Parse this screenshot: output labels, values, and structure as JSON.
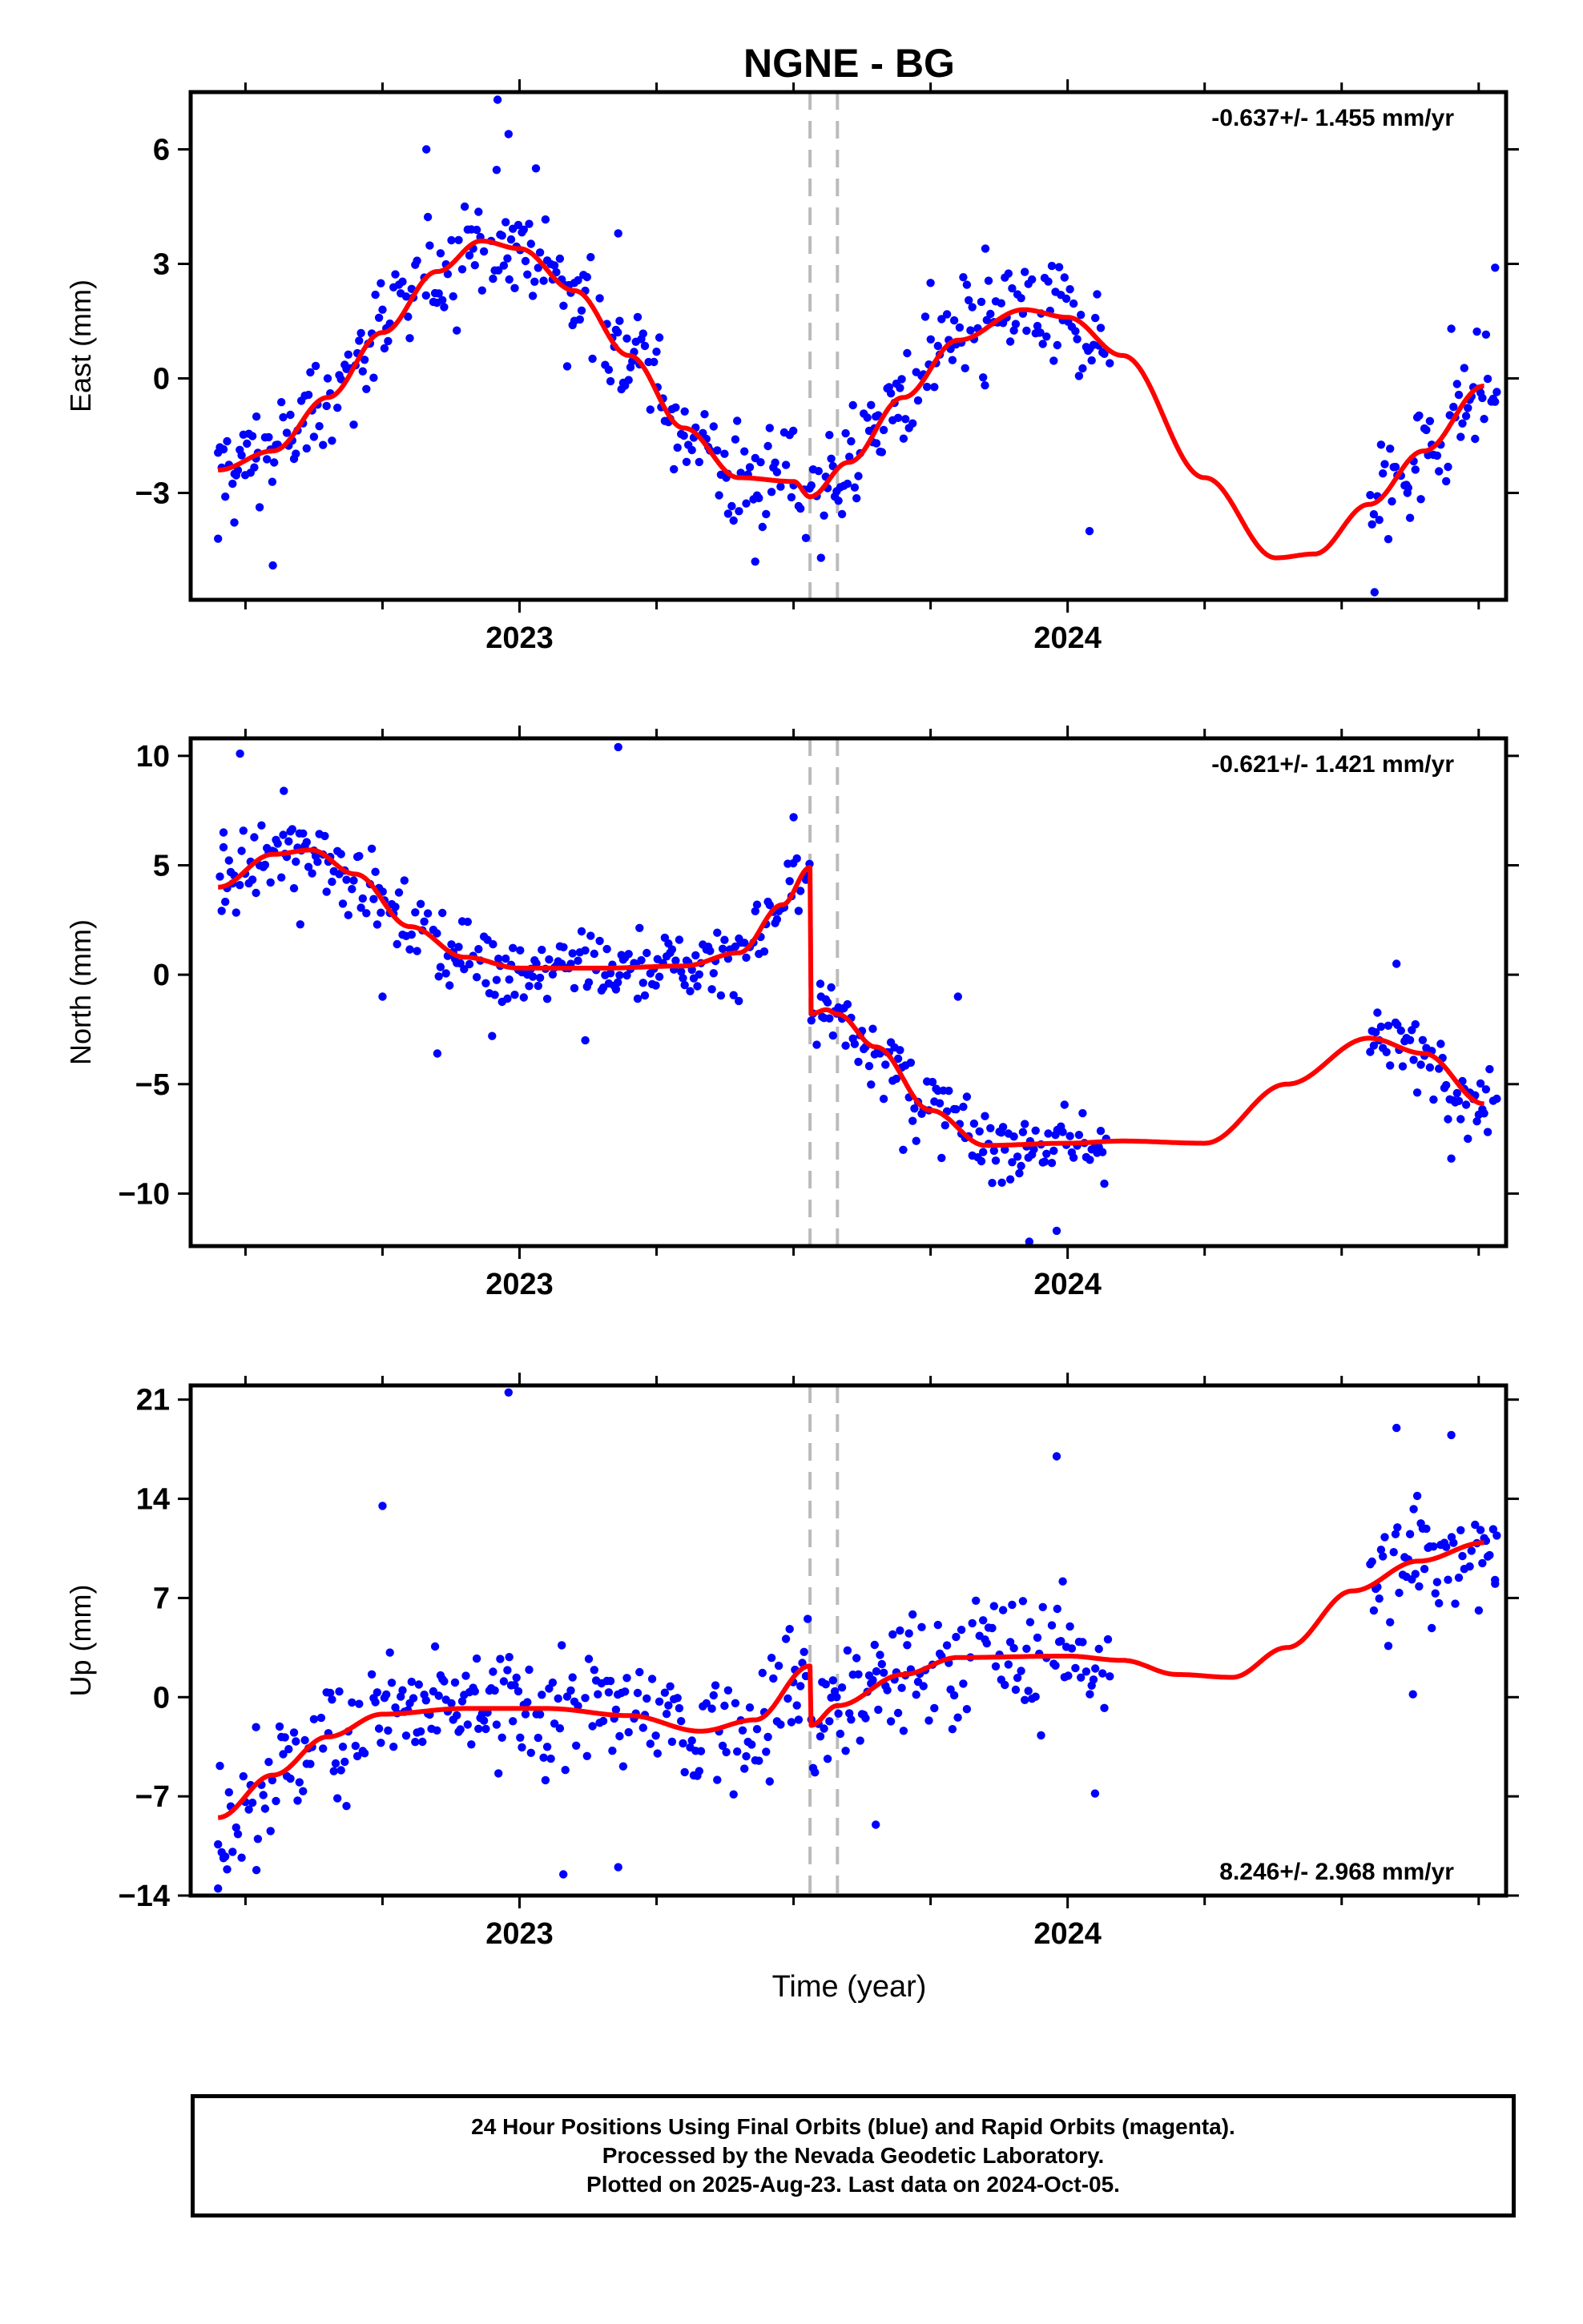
{
  "title": "NGNE - BG",
  "xlabel": "Time (year)",
  "footer": {
    "line1": "24 Hour Positions Using Final Orbits (blue) and Rapid Orbits (magenta).",
    "line2": "Processed by the Nevada Geodetic Laboratory.",
    "line3": "Plotted on 2025-Aug-23. Last data on 2024-Oct-05."
  },
  "colors": {
    "points": "#0000ff",
    "model": "#ff0000",
    "offsets": "#bbbbbb",
    "frame": "#000000"
  },
  "chart_data": [
    {
      "type": "scatter",
      "name": "east",
      "ylabel": "East (mm)",
      "rate_label": "-0.637+/- 1.455 mm/yr",
      "rate_position": "top-right",
      "xlim": [
        2022.4,
        2024.8
      ],
      "ylim": [
        -5.8,
        7.5
      ],
      "yticks": [
        -3,
        0,
        3,
        6
      ],
      "xticks_labeled": [
        2023,
        2024
      ],
      "offset_lines": [
        2023.53,
        2023.58
      ],
      "data_gap": [
        2024.08,
        2024.55
      ],
      "model": {
        "base": 0.35,
        "rate": -0.637,
        "t0": 2023.5,
        "terms": [
          {
            "amp": 3.4,
            "period": 1.0,
            "phase": 2022.92
          },
          {
            "amp": 0.7,
            "period": 0.5,
            "phase": 2022.92
          }
        ],
        "steps": [
          {
            "t": 2023.53,
            "dy": -0.7
          }
        ],
        "points": [
          [
            2022.45,
            -2.4
          ],
          [
            2022.55,
            -1.9
          ],
          [
            2022.65,
            -0.5
          ],
          [
            2022.75,
            1.2
          ],
          [
            2022.85,
            2.8
          ],
          [
            2022.93,
            3.6
          ],
          [
            2023.0,
            3.4
          ],
          [
            2023.1,
            2.3
          ],
          [
            2023.2,
            0.6
          ],
          [
            2023.3,
            -1.3
          ],
          [
            2023.4,
            -2.6
          ],
          [
            2023.5,
            -2.7
          ],
          [
            2023.53,
            -3.1
          ],
          [
            2023.6,
            -2.2
          ],
          [
            2023.7,
            -0.5
          ],
          [
            2023.8,
            1.0
          ],
          [
            2023.92,
            1.8
          ],
          [
            2024.0,
            1.6
          ],
          [
            2024.1,
            0.6
          ],
          [
            2024.25,
            -2.6
          ],
          [
            2024.38,
            -4.7
          ],
          [
            2024.45,
            -4.6
          ],
          [
            2024.55,
            -3.3
          ],
          [
            2024.65,
            -1.9
          ],
          [
            2024.76,
            -0.2
          ]
        ],
        "note": "model curve"
      },
      "scatter_spread": 1.1,
      "sample_points": [
        [
          2022.45,
          -4.2
        ],
        [
          2022.48,
          -2.5
        ],
        [
          2022.52,
          -1.0
        ],
        [
          2022.55,
          -4.9
        ],
        [
          2022.65,
          0.0
        ],
        [
          2022.75,
          1.8
        ],
        [
          2022.83,
          6.0
        ],
        [
          2022.9,
          4.5
        ],
        [
          2022.96,
          7.3
        ],
        [
          2022.98,
          6.4
        ],
        [
          2023.03,
          5.5
        ],
        [
          2023.1,
          2.5
        ],
        [
          2023.18,
          3.8
        ],
        [
          2023.25,
          0.7
        ],
        [
          2023.3,
          -1.5
        ],
        [
          2023.38,
          -2.5
        ],
        [
          2023.43,
          -4.8
        ],
        [
          2023.5,
          -2.8
        ],
        [
          2023.55,
          -4.7
        ],
        [
          2023.65,
          -1.0
        ],
        [
          2023.75,
          2.5
        ],
        [
          2023.85,
          3.4
        ],
        [
          2023.95,
          1.2
        ],
        [
          2024.04,
          -4.0
        ],
        [
          2024.56,
          -5.6
        ],
        [
          2024.62,
          -3.0
        ],
        [
          2024.7,
          1.3
        ],
        [
          2024.78,
          2.9
        ]
      ]
    },
    {
      "type": "scatter",
      "name": "north",
      "ylabel": "North (mm)",
      "rate_label": "-0.621+/- 1.421 mm/yr",
      "rate_position": "top-right",
      "xlim": [
        2022.4,
        2024.8
      ],
      "ylim": [
        -12.4,
        10.8
      ],
      "yticks": [
        -10,
        -5,
        0,
        5,
        10
      ],
      "xticks_labeled": [
        2023,
        2024
      ],
      "offset_lines": [
        2023.53,
        2023.58
      ],
      "data_gap": [
        2024.08,
        2024.55
      ],
      "model": {
        "points": [
          [
            2022.45,
            4.0
          ],
          [
            2022.55,
            5.5
          ],
          [
            2022.62,
            5.7
          ],
          [
            2022.7,
            4.6
          ],
          [
            2022.8,
            2.2
          ],
          [
            2022.9,
            0.8
          ],
          [
            2023.0,
            0.3
          ],
          [
            2023.15,
            0.3
          ],
          [
            2023.3,
            0.4
          ],
          [
            2023.4,
            1.0
          ],
          [
            2023.48,
            3.2
          ],
          [
            2023.53,
            4.9
          ],
          [
            2023.531,
            -1.8
          ],
          [
            2023.56,
            -1.6
          ],
          [
            2023.58,
            -1.8
          ],
          [
            2023.65,
            -3.3
          ],
          [
            2023.75,
            -6.2
          ],
          [
            2023.85,
            -7.8
          ],
          [
            2024.0,
            -7.7
          ],
          [
            2024.1,
            -7.6
          ],
          [
            2024.25,
            -7.7
          ],
          [
            2024.4,
            -5.0
          ],
          [
            2024.55,
            -2.9
          ],
          [
            2024.65,
            -3.6
          ],
          [
            2024.76,
            -5.9
          ]
        ],
        "note": "model curve"
      },
      "scatter_spread": 1.3,
      "sample_points": [
        [
          2022.46,
          6.5
        ],
        [
          2022.49,
          10.1
        ],
        [
          2022.57,
          8.4
        ],
        [
          2022.6,
          2.3
        ],
        [
          2022.75,
          -1.0
        ],
        [
          2022.85,
          -3.6
        ],
        [
          2022.95,
          -2.8
        ],
        [
          2023.12,
          -3.0
        ],
        [
          2023.18,
          10.4
        ],
        [
          2023.4,
          -1.2
        ],
        [
          2023.5,
          7.2
        ],
        [
          2023.55,
          -1.0
        ],
        [
          2023.7,
          -8.0
        ],
        [
          2023.8,
          -1.0
        ],
        [
          2023.88,
          -9.5
        ],
        [
          2023.93,
          -12.2
        ],
        [
          2023.98,
          -11.7
        ],
        [
          2024.6,
          0.5
        ],
        [
          2024.7,
          -8.4
        ]
      ]
    },
    {
      "type": "scatter",
      "name": "up",
      "ylabel": "Up (mm)",
      "rate_label": "8.246+/- 2.968 mm/yr",
      "rate_position": "bottom-right",
      "xlim": [
        2022.4,
        2024.8
      ],
      "ylim": [
        -14,
        22
      ],
      "yticks": [
        -14,
        -7,
        0,
        7,
        14,
        21
      ],
      "xticks_labeled": [
        2023,
        2024
      ],
      "offset_lines": [
        2023.53,
        2023.58
      ],
      "data_gap": [
        2024.08,
        2024.55
      ],
      "model": {
        "points": [
          [
            2022.45,
            -8.5
          ],
          [
            2022.55,
            -5.5
          ],
          [
            2022.65,
            -2.8
          ],
          [
            2022.75,
            -1.2
          ],
          [
            2022.9,
            -0.8
          ],
          [
            2023.05,
            -0.8
          ],
          [
            2023.2,
            -1.3
          ],
          [
            2023.33,
            -2.4
          ],
          [
            2023.43,
            -1.6
          ],
          [
            2023.53,
            2.2
          ],
          [
            2023.531,
            -2.0
          ],
          [
            2023.58,
            -0.6
          ],
          [
            2023.7,
            1.6
          ],
          [
            2023.8,
            2.8
          ],
          [
            2024.0,
            2.9
          ],
          [
            2024.1,
            2.6
          ],
          [
            2024.2,
            1.6
          ],
          [
            2024.3,
            1.4
          ],
          [
            2024.4,
            3.5
          ],
          [
            2024.52,
            7.5
          ],
          [
            2024.64,
            9.6
          ],
          [
            2024.76,
            10.9
          ]
        ],
        "note": "model curve"
      },
      "scatter_spread": 3.5,
      "sample_points": [
        [
          2022.45,
          -13.5
        ],
        [
          2022.52,
          -12.2
        ],
        [
          2022.75,
          13.5
        ],
        [
          2022.98,
          21.5
        ],
        [
          2023.08,
          -12.5
        ],
        [
          2023.18,
          -12.0
        ],
        [
          2023.65,
          -9.0
        ],
        [
          2023.98,
          17.0
        ],
        [
          2024.05,
          -6.8
        ],
        [
          2024.6,
          19.0
        ],
        [
          2024.63,
          0.2
        ],
        [
          2024.7,
          18.5
        ],
        [
          2024.78,
          8.0
        ]
      ]
    }
  ]
}
